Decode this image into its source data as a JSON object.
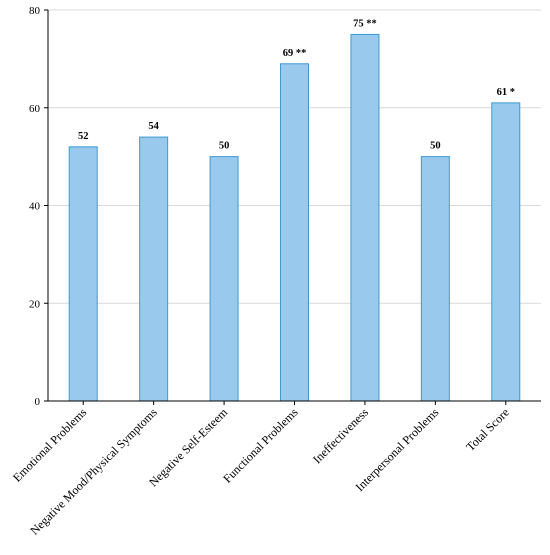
{
  "chart_data": {
    "type": "bar",
    "categories": [
      "Emotional Problems",
      "Negative Mood/Physical Symptoms",
      "Negative Self-Esteem",
      "Functional Problems",
      "Ineffectiveness",
      "Interpersonal Problems",
      "Total Score"
    ],
    "values": [
      52,
      54,
      50,
      69,
      75,
      50,
      61
    ],
    "data_labels": [
      "52",
      "54",
      "50",
      "69 **",
      "75 **",
      "50",
      "61 *"
    ],
    "title": "",
    "xlabel": "",
    "ylabel": "",
    "ylim": [
      0,
      80
    ],
    "yticks": [
      0,
      20,
      40,
      60,
      80
    ],
    "grid": true,
    "legend": "none",
    "colors": {
      "bar_fill": "#99c9ec",
      "bar_stroke": "#3c9ad3",
      "grid": "#d9d9d9",
      "axis": "#000000"
    }
  }
}
